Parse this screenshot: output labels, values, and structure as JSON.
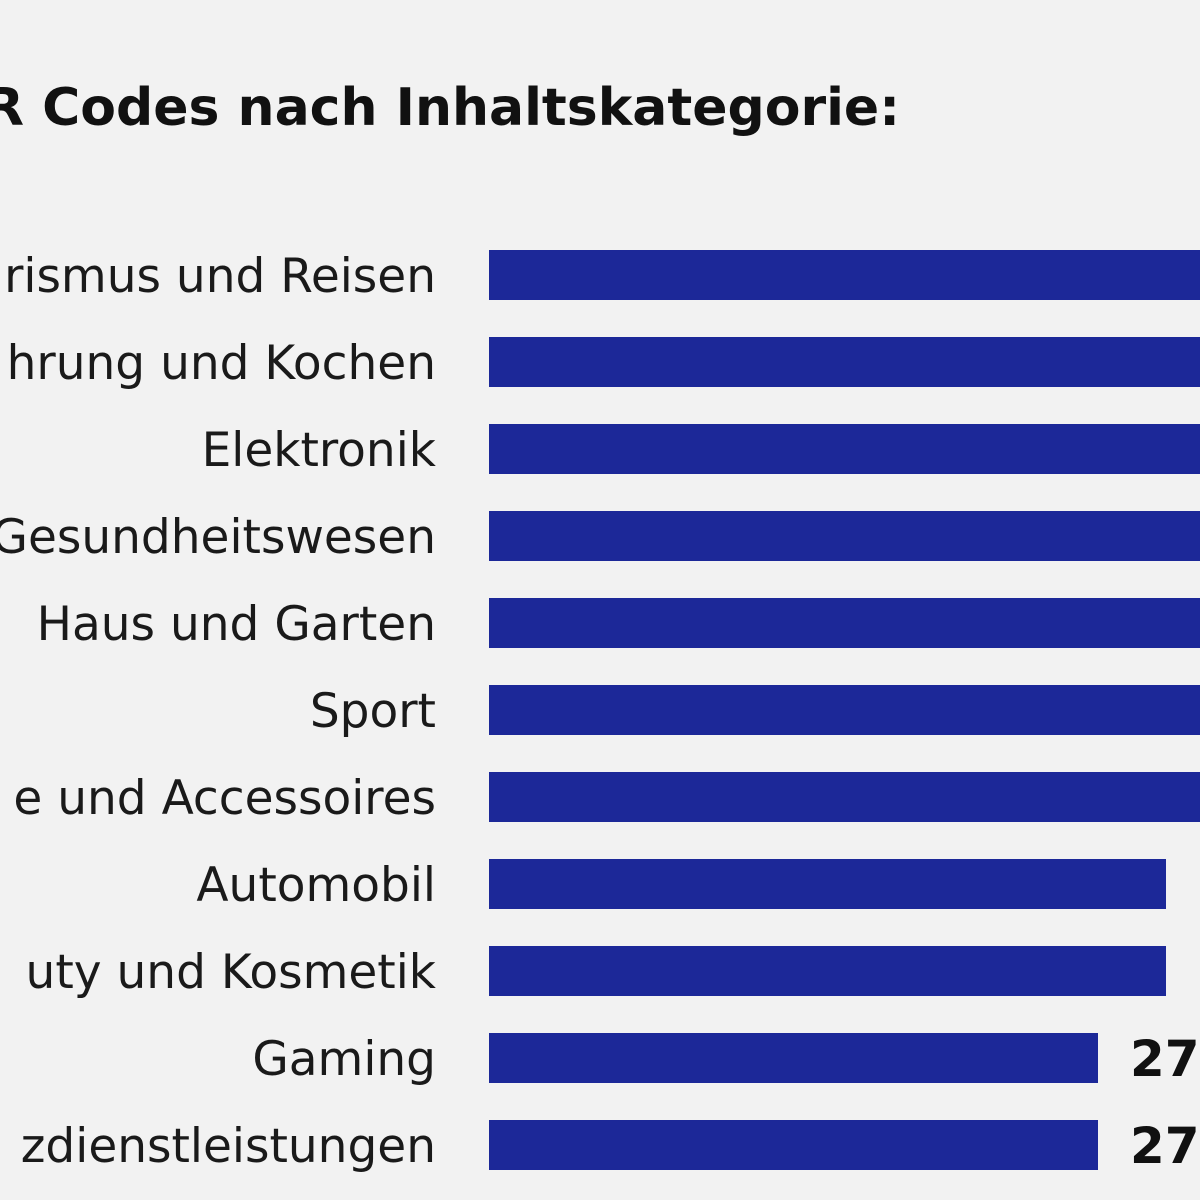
{
  "chart_data": {
    "type": "bar",
    "orientation": "horizontal",
    "title": "QR Codes nach Inhaltskategorie:",
    "categories": [
      "rismus und Reisen",
      "hrung und Kochen",
      "Elektronik",
      "Gesundheitswesen",
      "Haus und Garten",
      "Sport",
      "e und Accessoires",
      "Automobil",
      "uty und Kosmetik",
      "Gaming",
      "zdienstleistungen"
    ],
    "values": [
      null,
      null,
      null,
      null,
      null,
      null,
      null,
      null,
      null,
      27,
      27
    ],
    "value_labels": [
      "",
      "",
      "",
      "",
      "",
      "",
      "",
      "",
      "",
      "27",
      "27"
    ],
    "relative_bar_lengths": [
      1.15,
      1.15,
      1.15,
      1.15,
      1.15,
      1.15,
      1.15,
      1.0,
      1.0,
      0.9,
      0.9
    ],
    "xlabel": "",
    "ylabel": "",
    "grid": false,
    "legend": "none",
    "bar_color": "#1c2898"
  }
}
